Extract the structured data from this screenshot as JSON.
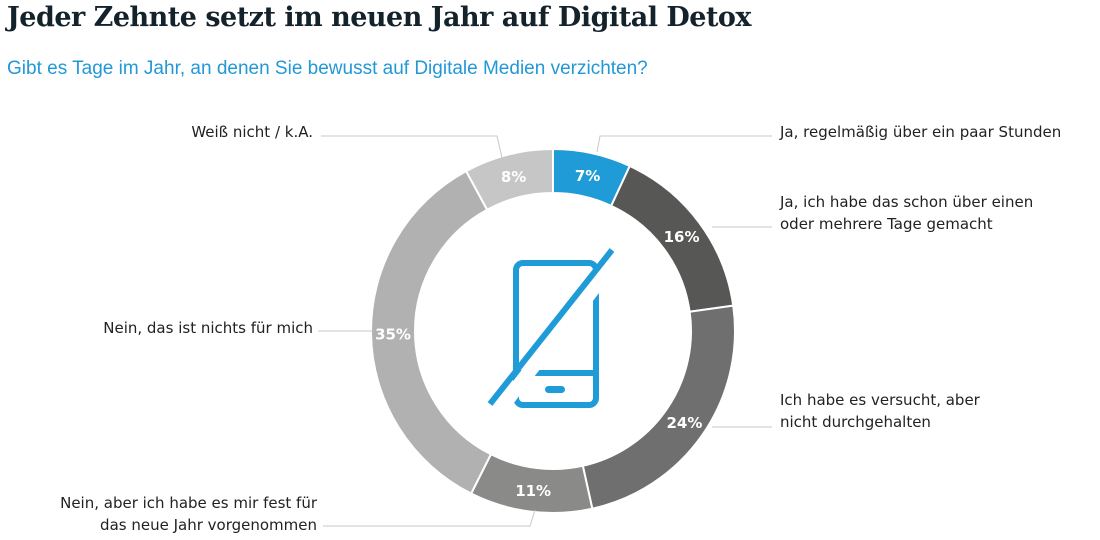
{
  "header": {
    "title": "Jeder Zehnte setzt im neuen Jahr auf Digital Detox",
    "subtitle": "Gibt es Tage im Jahr, an denen Sie bewusst auf Digitale Medien verzichten?"
  },
  "colors": {
    "accent": "#1f9bd7",
    "title": "#14232b",
    "subtitle": "#2298d6"
  },
  "center_icon": "no-smartphone-icon",
  "chart_data": {
    "type": "pie",
    "variant": "donut",
    "title": "Jeder Zehnte setzt im neuen Jahr auf Digital Detox",
    "subtitle": "Gibt es Tage im Jahr, an denen Sie bewusst auf Digitale Medien verzichten?",
    "unit": "%",
    "start": "12 o'clock, clockwise",
    "slices": [
      {
        "label": "Ja, regelmäßig über ein paar Stunden",
        "value": 7,
        "display": "7%",
        "color": "#1f9bd7"
      },
      {
        "label": "Ja, ich habe das schon über einen oder mehrere Tage gemacht",
        "value": 16,
        "display": "16%",
        "color": "#575756"
      },
      {
        "label": "Ich habe es versucht, aber nicht durchgehalten",
        "value": 24,
        "display": "24%",
        "color": "#706f6f"
      },
      {
        "label": "Nein, aber ich habe es mir fest für das neue Jahr vorgenommen",
        "value": 11,
        "display": "11%",
        "color": "#8a8a89"
      },
      {
        "label": "Nein, das ist nichts für mich",
        "value": 35,
        "display": "35%",
        "color": "#b1b1b1"
      },
      {
        "label": "Weiß nicht / k.A.",
        "value": 8,
        "display": "8%",
        "color": "#c6c6c6"
      }
    ],
    "labels_lines": [
      [
        "Ja, regelmäßig über ein paar Stunden"
      ],
      [
        "Ja, ich habe das schon über einen",
        "oder mehrere Tage gemacht"
      ],
      [
        "Ich habe es versucht, aber",
        "nicht durchgehalten"
      ],
      [
        "Nein, aber ich habe es mir fest für",
        "das neue Jahr vorgenommen"
      ],
      [
        "Nein, das ist nichts für mich"
      ],
      [
        "Weiß nicht / k.A."
      ]
    ]
  }
}
